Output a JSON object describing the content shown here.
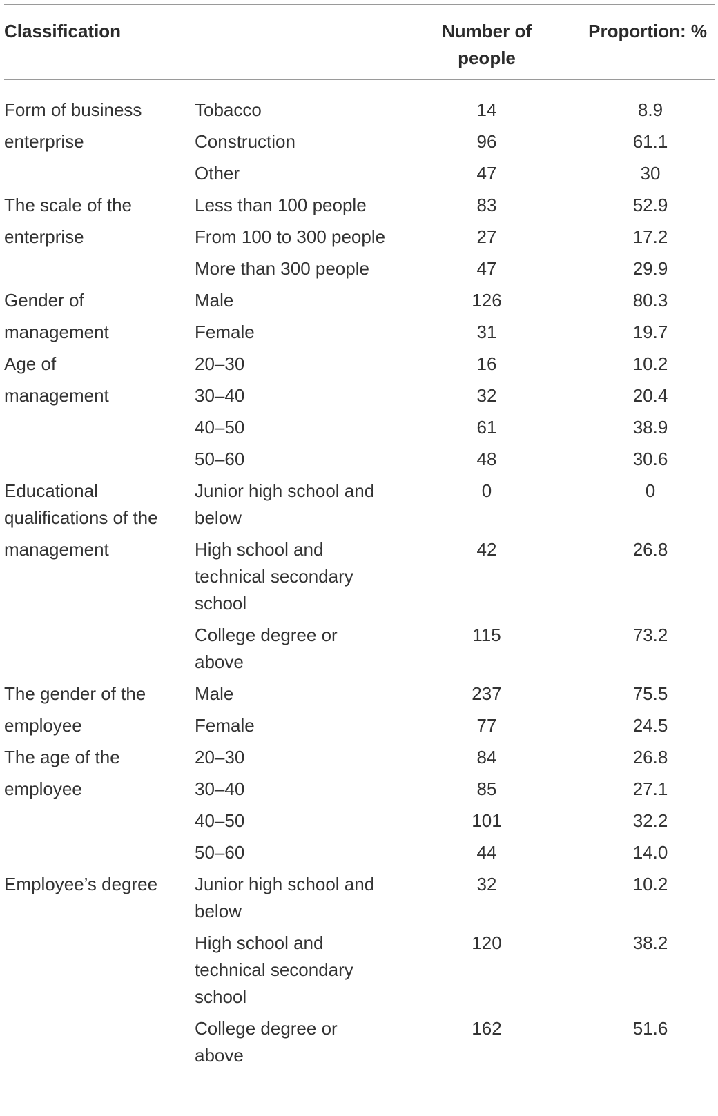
{
  "table": {
    "headers": [
      "Classification",
      "",
      "Number of people",
      "Proportion: %"
    ],
    "rows": [
      {
        "group": "Form of business",
        "item": "Tobacco",
        "count": "14",
        "pct": "8.9"
      },
      {
        "group": "enterprise",
        "item": "Construction",
        "count": "96",
        "pct": "61.1"
      },
      {
        "group": "",
        "item": "Other",
        "count": "47",
        "pct": "30"
      },
      {
        "group": "The scale of the",
        "item": "Less than 100 people",
        "count": "83",
        "pct": "52.9"
      },
      {
        "group": "enterprise",
        "item": "From 100 to 300 people",
        "count": "27",
        "pct": "17.2"
      },
      {
        "group": "",
        "item": "More than 300 people",
        "count": "47",
        "pct": "29.9"
      },
      {
        "group": "Gender of",
        "item": "Male",
        "count": "126",
        "pct": "80.3"
      },
      {
        "group": "management",
        "item": "Female",
        "count": "31",
        "pct": "19.7"
      },
      {
        "group": "Age of",
        "item": "20–30",
        "count": "16",
        "pct": "10.2"
      },
      {
        "group": "management",
        "item": "30–40",
        "count": "32",
        "pct": "20.4"
      },
      {
        "group": "",
        "item": "40–50",
        "count": "61",
        "pct": "38.9"
      },
      {
        "group": "",
        "item": "50–60",
        "count": "48",
        "pct": "30.6"
      },
      {
        "group": "Educational qualifications of the",
        "item": "Junior high school and below",
        "count": "0",
        "pct": "0"
      },
      {
        "group": "management",
        "item": "High school and technical secondary school",
        "count": "42",
        "pct": "26.8"
      },
      {
        "group": "",
        "item": "College degree or above",
        "count": "115",
        "pct": "73.2"
      },
      {
        "group": "The gender of the",
        "item": "Male",
        "count": "237",
        "pct": "75.5"
      },
      {
        "group": "employee",
        "item": "Female",
        "count": "77",
        "pct": "24.5"
      },
      {
        "group": "The age of the",
        "item": "20–30",
        "count": "84",
        "pct": "26.8"
      },
      {
        "group": "employee",
        "item": "30–40",
        "count": "85",
        "pct": "27.1"
      },
      {
        "group": "",
        "item": "40–50",
        "count": "101",
        "pct": "32.2"
      },
      {
        "group": "",
        "item": "50–60",
        "count": "44",
        "pct": "14.0"
      },
      {
        "group": "Employee’s degree",
        "item": "Junior high school and below",
        "count": "32",
        "pct": "10.2"
      },
      {
        "group": "",
        "item": "High school and technical secondary school",
        "count": "120",
        "pct": "38.2"
      },
      {
        "group": "",
        "item": "College degree or above",
        "count": "162",
        "pct": "51.6"
      }
    ]
  }
}
